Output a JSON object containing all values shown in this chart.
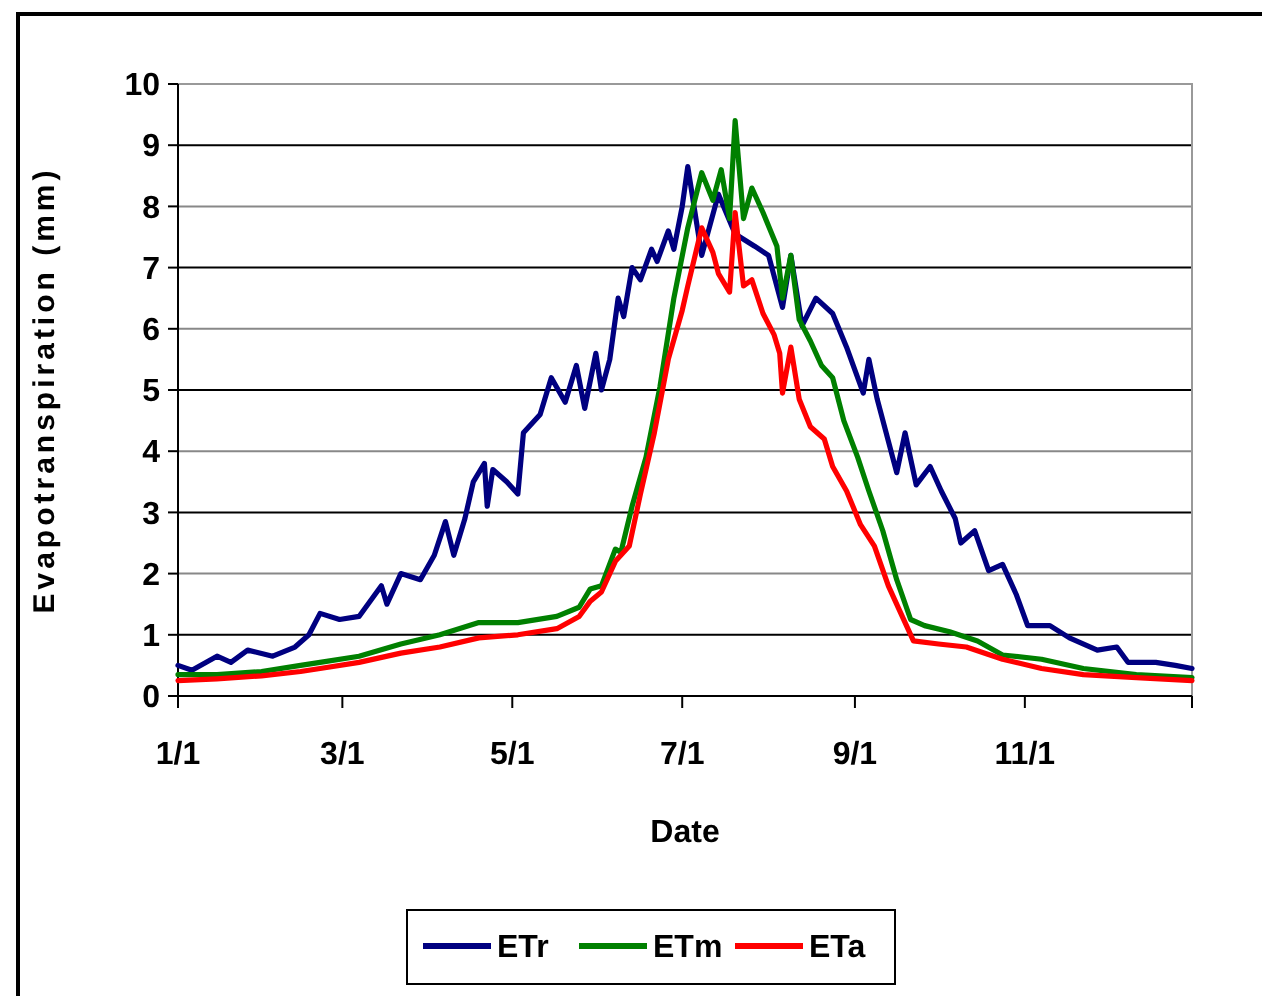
{
  "chart_data": {
    "type": "line",
    "xlabel": "Date",
    "ylabel": "Evapotranspiration (mm)",
    "xlim": [
      "--01-01",
      "--12-31"
    ],
    "xticks": [
      {
        "value": "--01-01",
        "label": "1/1"
      },
      {
        "value": "--03-01",
        "label": "3/1"
      },
      {
        "value": "--05-01",
        "label": "5/1"
      },
      {
        "value": "--07-01",
        "label": "7/1"
      },
      {
        "value": "--09-01",
        "label": "9/1"
      },
      {
        "value": "--11-01",
        "label": "11/1"
      },
      {
        "value": "--12-31",
        "label": null
      }
    ],
    "ylim": [
      0,
      10
    ],
    "yticks": [
      0,
      1,
      2,
      3,
      4,
      5,
      6,
      7,
      8,
      9,
      10
    ],
    "grid": "y",
    "legend": "bottom",
    "marker": "none",
    "line_style": "solid",
    "series": [
      {
        "name": "ETr",
        "color": "#000080",
        "x": [
          "--01-01",
          "--01-06",
          "--01-15",
          "--01-20",
          "--01-26",
          "--02-04",
          "--02-12",
          "--02-17",
          "--02-21",
          "--02-28",
          "--03-07",
          "--03-15",
          "--03-17",
          "--03-22",
          "--03-29",
          "--04-03",
          "--04-07",
          "--04-10",
          "--04-14",
          "--04-17",
          "--04-21",
          "--04-22",
          "--04-24",
          "--04-29",
          "--05-03",
          "--05-05",
          "--05-11",
          "--05-15",
          "--05-20",
          "--05-24",
          "--05-27",
          "--05-31",
          "--06-02",
          "--06-05",
          "--06-08",
          "--06-10",
          "--06-13",
          "--06-16",
          "--06-20",
          "--06-22",
          "--06-26",
          "--06-28",
          "--07-01",
          "--07-03",
          "--07-08",
          "--07-14",
          "--07-20",
          "--07-27",
          "--08-01",
          "--08-06",
          "--08-09",
          "--08-13",
          "--08-18",
          "--08-24",
          "--08-29",
          "--09-04",
          "--09-06",
          "--09-09",
          "--09-16",
          "--09-19",
          "--09-23",
          "--09-28",
          "--10-02",
          "--10-07",
          "--10-09",
          "--10-14",
          "--10-19",
          "--10-24",
          "--10-29",
          "--11-02",
          "--11-10",
          "--11-17",
          "--11-27",
          "--12-04",
          "--12-08",
          "--12-18",
          "--12-25",
          "--12-31"
        ],
        "values": [
          0.5,
          0.42,
          0.65,
          0.55,
          0.75,
          0.65,
          0.8,
          1.0,
          1.35,
          1.25,
          1.3,
          1.8,
          1.5,
          2.0,
          1.9,
          2.3,
          2.85,
          2.3,
          2.9,
          3.5,
          3.8,
          3.1,
          3.7,
          3.5,
          3.3,
          4.3,
          4.6,
          5.2,
          4.8,
          5.4,
          4.7,
          5.6,
          5.0,
          5.5,
          6.5,
          6.2,
          7.0,
          6.8,
          7.3,
          7.1,
          7.6,
          7.3,
          8.0,
          8.65,
          7.2,
          8.2,
          7.55,
          7.35,
          7.2,
          6.35,
          7.2,
          6.05,
          6.5,
          6.25,
          5.7,
          4.95,
          5.5,
          4.85,
          3.65,
          4.3,
          3.45,
          3.75,
          3.35,
          2.9,
          2.5,
          2.7,
          2.05,
          2.15,
          1.65,
          1.15,
          1.15,
          0.95,
          0.75,
          0.8,
          0.55,
          0.55,
          0.5,
          0.45
        ]
      },
      {
        "name": "ETm",
        "color": "#008000",
        "x": [
          "--01-01",
          "--01-15",
          "--01-31",
          "--02-14",
          "--02-21",
          "--03-07",
          "--03-22",
          "--04-05",
          "--04-19",
          "--05-03",
          "--05-17",
          "--05-25",
          "--05-29",
          "--06-02",
          "--06-07",
          "--06-09",
          "--06-13",
          "--06-18",
          "--06-23",
          "--06-28",
          "--07-03",
          "--07-08",
          "--07-12",
          "--07-15",
          "--07-18",
          "--07-20",
          "--07-23",
          "--07-26",
          "--07-30",
          "--08-04",
          "--08-06",
          "--08-09",
          "--08-12",
          "--08-16",
          "--08-20",
          "--08-24",
          "--08-28",
          "--09-02",
          "--09-06",
          "--09-11",
          "--09-16",
          "--09-21",
          "--09-26",
          "--10-05",
          "--10-15",
          "--10-24",
          "--11-07",
          "--11-22",
          "--12-11",
          "--12-31"
        ],
        "values": [
          0.35,
          0.35,
          0.4,
          0.5,
          0.55,
          0.65,
          0.85,
          1.0,
          1.2,
          1.2,
          1.3,
          1.45,
          1.75,
          1.8,
          2.4,
          2.35,
          3.1,
          3.9,
          5.05,
          6.5,
          7.65,
          8.55,
          8.1,
          8.6,
          7.8,
          9.4,
          7.8,
          8.3,
          7.9,
          7.35,
          6.5,
          7.2,
          6.15,
          5.8,
          5.4,
          5.2,
          4.5,
          3.9,
          3.35,
          2.7,
          1.9,
          1.25,
          1.15,
          1.05,
          0.9,
          0.67,
          0.6,
          0.45,
          0.35,
          0.3
        ]
      },
      {
        "name": "ETa",
        "color": "#ff0000",
        "x": [
          "--01-01",
          "--01-15",
          "--01-31",
          "--02-14",
          "--02-21",
          "--03-07",
          "--03-22",
          "--04-05",
          "--04-19",
          "--05-03",
          "--05-17",
          "--05-25",
          "--05-29",
          "--06-02",
          "--06-07",
          "--06-12",
          "--06-16",
          "--06-21",
          "--06-26",
          "--07-01",
          "--07-03",
          "--07-08",
          "--07-12",
          "--07-14",
          "--07-18",
          "--07-20",
          "--07-23",
          "--07-26",
          "--07-30",
          "--08-03",
          "--08-05",
          "--08-06",
          "--08-09",
          "--08-12",
          "--08-16",
          "--08-21",
          "--08-24",
          "--08-29",
          "--09-03",
          "--09-08",
          "--09-13",
          "--09-17",
          "--09-22",
          "--10-01",
          "--10-11",
          "--10-24",
          "--11-07",
          "--11-22",
          "--12-11",
          "--12-31"
        ],
        "values": [
          0.25,
          0.28,
          0.33,
          0.4,
          0.45,
          0.55,
          0.7,
          0.8,
          0.95,
          1.0,
          1.1,
          1.3,
          1.55,
          1.7,
          2.2,
          2.45,
          3.3,
          4.3,
          5.5,
          6.3,
          6.7,
          7.65,
          7.25,
          6.9,
          6.6,
          7.9,
          6.7,
          6.8,
          6.25,
          5.9,
          5.6,
          4.95,
          5.7,
          4.85,
          4.4,
          4.2,
          3.75,
          3.35,
          2.8,
          2.45,
          1.8,
          1.4,
          0.9,
          0.85,
          0.8,
          0.6,
          0.45,
          0.35,
          0.3,
          0.25
        ]
      }
    ]
  }
}
